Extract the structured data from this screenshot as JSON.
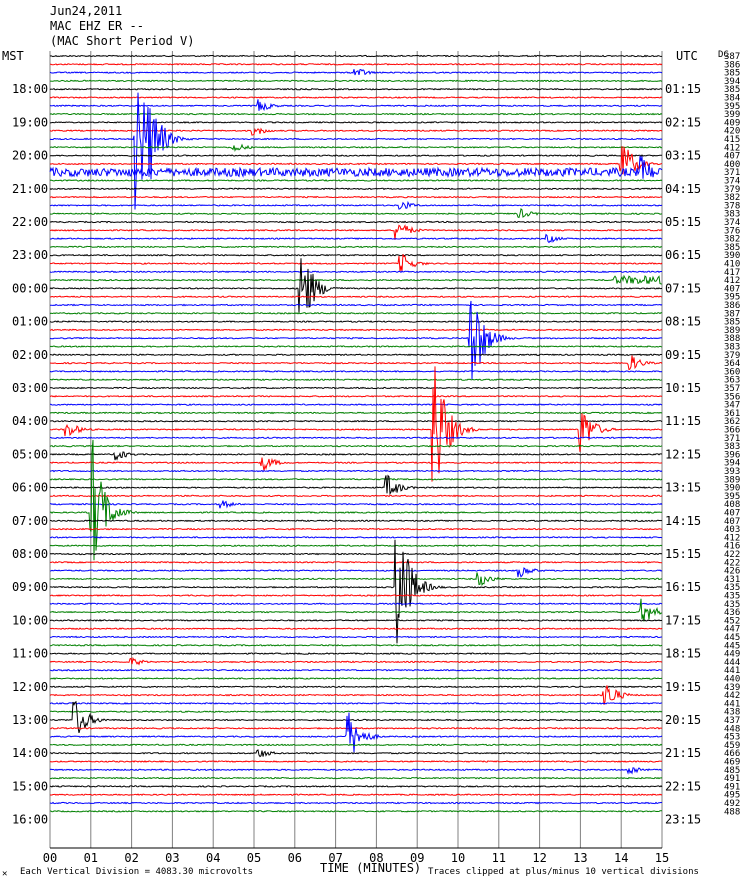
{
  "header": {
    "date": "Jun24,2011",
    "station": "MAC EHZ ER --",
    "instrument": "(MAC Short Period V)"
  },
  "axis": {
    "left_title": "MST",
    "right_title": "UTC",
    "xlabel": "TIME (MINUTES)",
    "x_ticks": [
      "00",
      "01",
      "02",
      "03",
      "04",
      "05",
      "06",
      "07",
      "08",
      "09",
      "10",
      "11",
      "12",
      "13",
      "14",
      "15"
    ],
    "left_hours": [
      "18:00",
      "19:00",
      "20:00",
      "21:00",
      "22:00",
      "23:00",
      "00:00",
      "01:00",
      "02:00",
      "03:00",
      "04:00",
      "05:00",
      "06:00",
      "07:00",
      "08:00",
      "09:00",
      "10:00",
      "11:00",
      "12:00",
      "13:00",
      "14:00",
      "15:00",
      "16:00"
    ],
    "right_hours": [
      "01:15",
      "02:15",
      "03:15",
      "04:15",
      "05:15",
      "06:15",
      "07:15",
      "08:15",
      "09:15",
      "10:15",
      "11:15",
      "12:15",
      "13:15",
      "14:15",
      "15:15",
      "16:15",
      "17:15",
      "18:15",
      "19:15",
      "20:15",
      "21:15",
      "22:15",
      "23:15"
    ]
  },
  "footer": {
    "left_mark": "✕",
    "scale_note": "Each Vertical Division = 4083.30 microvolts",
    "clip_note": "Traces clipped at plus/minus 10 vertical divisions"
  },
  "dc_label": "DC",
  "dc_offsets": [
    387,
    386,
    385,
    394,
    385,
    384,
    395,
    399,
    409,
    420,
    415,
    412,
    407,
    400,
    371,
    374,
    379,
    382,
    378,
    383,
    374,
    376,
    382,
    385,
    390,
    410,
    417,
    412,
    407,
    395,
    386,
    387,
    385,
    389,
    388,
    383,
    379,
    364,
    360,
    363,
    357,
    356,
    347,
    361,
    362,
    366,
    371,
    383,
    396,
    394,
    393,
    389,
    390,
    395,
    408,
    407,
    407,
    403,
    412,
    416,
    422,
    422,
    426,
    431,
    435,
    435,
    435,
    436,
    452,
    447,
    445,
    445,
    449,
    444,
    441,
    440,
    439,
    442,
    441,
    438,
    437,
    448,
    453,
    459,
    466,
    469,
    485,
    491,
    491,
    495,
    492,
    488
  ],
  "colors": {
    "trace_cycle": [
      "#000000",
      "#ff0000",
      "#0000ff",
      "#008000"
    ],
    "grid": "#808080"
  },
  "chart_data": {
    "type": "seismogram",
    "traces_per_hour": 4,
    "minutes_per_trace": 15,
    "trace_count": 92,
    "events": [
      {
        "trace": 2,
        "minute": 7.5,
        "amp": 0.6
      },
      {
        "trace": 6,
        "minute": 5.1,
        "amp": 0.8
      },
      {
        "trace": 9,
        "minute": 5.0,
        "amp": 0.6
      },
      {
        "trace": 10,
        "minute": 2.1,
        "amp": 9.0
      },
      {
        "trace": 10,
        "minute": 2.45,
        "amp": 5.0
      },
      {
        "trace": 11,
        "minute": 4.5,
        "amp": 0.6
      },
      {
        "trace": 13,
        "minute": 14.0,
        "amp": 3.0
      },
      {
        "trace": 14,
        "minute": 14.5,
        "amp": 2.0
      },
      {
        "trace": 18,
        "minute": 8.6,
        "amp": 0.6
      },
      {
        "trace": 19,
        "minute": 11.5,
        "amp": 0.6
      },
      {
        "trace": 21,
        "minute": 8.5,
        "amp": 1.2
      },
      {
        "trace": 22,
        "minute": 12.2,
        "amp": 0.5
      },
      {
        "trace": 25,
        "minute": 8.6,
        "amp": 1.2
      },
      {
        "trace": 28,
        "minute": 6.15,
        "amp": 5.0
      },
      {
        "trace": 34,
        "minute": 10.3,
        "amp": 7.0
      },
      {
        "trace": 37,
        "minute": 14.2,
        "amp": 1.0
      },
      {
        "trace": 45,
        "minute": 0.4,
        "amp": 1.0
      },
      {
        "trace": 45,
        "minute": 9.4,
        "amp": 9.0
      },
      {
        "trace": 45,
        "minute": 13.0,
        "amp": 3.0
      },
      {
        "trace": 48,
        "minute": 1.6,
        "amp": 0.7
      },
      {
        "trace": 49,
        "minute": 5.2,
        "amp": 1.0
      },
      {
        "trace": 52,
        "minute": 8.25,
        "amp": 1.5
      },
      {
        "trace": 54,
        "minute": 4.2,
        "amp": 0.5
      },
      {
        "trace": 55,
        "minute": 1.0,
        "amp": 9.0
      },
      {
        "trace": 62,
        "minute": 11.5,
        "amp": 0.8
      },
      {
        "trace": 63,
        "minute": 10.5,
        "amp": 0.9
      },
      {
        "trace": 64,
        "minute": 8.5,
        "amp": 9.0
      },
      {
        "trace": 67,
        "minute": 14.5,
        "amp": 1.6
      },
      {
        "trace": 73,
        "minute": 2.0,
        "amp": 0.5
      },
      {
        "trace": 77,
        "minute": 13.6,
        "amp": 1.7
      },
      {
        "trace": 80,
        "minute": 0.6,
        "amp": 2.5
      },
      {
        "trace": 82,
        "minute": 7.3,
        "amp": 3.0
      },
      {
        "trace": 84,
        "minute": 5.1,
        "amp": 0.6
      },
      {
        "trace": 86,
        "minute": 14.2,
        "amp": 0.6
      }
    ],
    "noisy_traces": [
      {
        "trace": 14,
        "start_minute": 0,
        "end_minute": 15,
        "amp": 0.5
      },
      {
        "trace": 27,
        "start_minute": 13.8,
        "end_minute": 15,
        "amp": 0.5
      }
    ]
  }
}
